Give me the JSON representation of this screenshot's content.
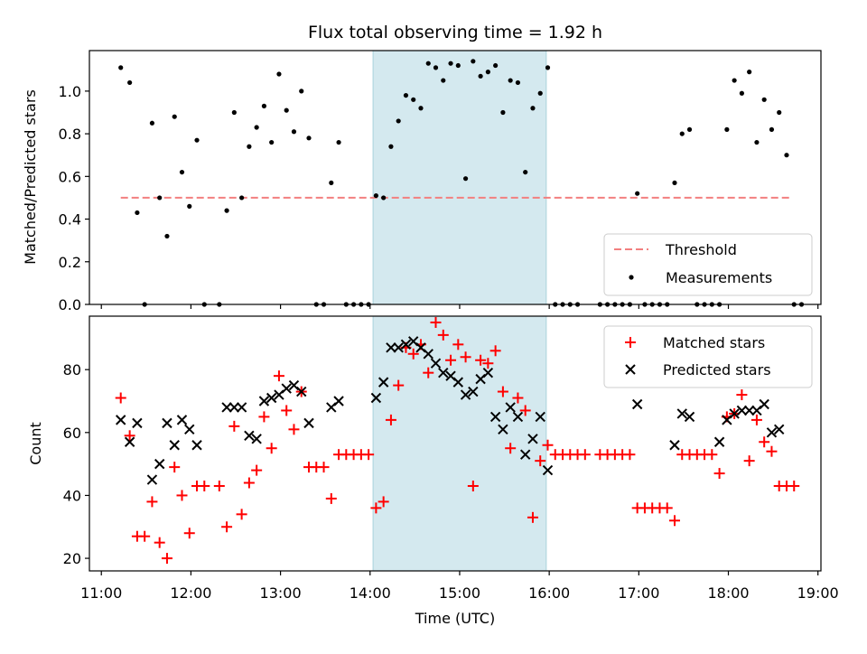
{
  "chart_data": [
    {
      "type": "scatter",
      "title": "Flux total observing time = 1.92 h",
      "ylabel": "Matched/Predicted stars",
      "xlabel": "",
      "ylim": [
        0,
        1.19
      ],
      "xlim": [
        "10:52",
        "19:02"
      ],
      "yticks": [
        0.0,
        0.2,
        0.4,
        0.6,
        0.8,
        1.0
      ],
      "ytick_labels": [
        "0.0",
        "0.2",
        "0.4",
        "0.6",
        "0.8",
        "1.0"
      ],
      "shaded_interval": [
        "14:02",
        "15:58"
      ],
      "shade_color": "#d4e9ef",
      "legend_position": "lower-right",
      "threshold": {
        "name": "Threshold",
        "value": 0.5,
        "x_range": [
          "11:13",
          "18:42"
        ],
        "color": "#f27f7f",
        "style": "dashed"
      },
      "series": [
        {
          "name": "Measurements",
          "color": "#000000",
          "marker": "dot",
          "points": [
            [
              "11:13",
              1.11
            ],
            [
              "11:19",
              1.04
            ],
            [
              "11:24",
              0.43
            ],
            [
              "11:29",
              0.0
            ],
            [
              "11:34",
              0.85
            ],
            [
              "11:39",
              0.5
            ],
            [
              "11:44",
              0.32
            ],
            [
              "11:49",
              0.88
            ],
            [
              "11:54",
              0.62
            ],
            [
              "11:59",
              0.46
            ],
            [
              "12:04",
              0.77
            ],
            [
              "12:09",
              0.0
            ],
            [
              "12:19",
              0.0
            ],
            [
              "12:24",
              0.44
            ],
            [
              "12:29",
              0.9
            ],
            [
              "12:34",
              0.5
            ],
            [
              "12:39",
              0.74
            ],
            [
              "12:44",
              0.83
            ],
            [
              "12:49",
              0.93
            ],
            [
              "12:54",
              0.76
            ],
            [
              "12:59",
              1.08
            ],
            [
              "13:04",
              0.91
            ],
            [
              "13:09",
              0.81
            ],
            [
              "13:14",
              1.0
            ],
            [
              "13:19",
              0.78
            ],
            [
              "13:24",
              0.0
            ],
            [
              "13:29",
              0.0
            ],
            [
              "13:34",
              0.57
            ],
            [
              "13:39",
              0.76
            ],
            [
              "13:44",
              0.0
            ],
            [
              "13:49",
              0.0
            ],
            [
              "13:54",
              0.0
            ],
            [
              "13:59",
              0.0
            ],
            [
              "14:04",
              0.51
            ],
            [
              "14:09",
              0.5
            ],
            [
              "14:14",
              0.74
            ],
            [
              "14:19",
              0.86
            ],
            [
              "14:24",
              0.98
            ],
            [
              "14:29",
              0.96
            ],
            [
              "14:34",
              0.92
            ],
            [
              "14:39",
              1.13
            ],
            [
              "14:44",
              1.11
            ],
            [
              "14:49",
              1.05
            ],
            [
              "14:54",
              1.13
            ],
            [
              "14:59",
              1.12
            ],
            [
              "15:04",
              0.59
            ],
            [
              "15:09",
              1.14
            ],
            [
              "15:14",
              1.07
            ],
            [
              "15:19",
              1.09
            ],
            [
              "15:24",
              1.12
            ],
            [
              "15:29",
              0.9
            ],
            [
              "15:34",
              1.05
            ],
            [
              "15:39",
              1.04
            ],
            [
              "15:44",
              0.62
            ],
            [
              "15:49",
              0.92
            ],
            [
              "15:54",
              0.99
            ],
            [
              "15:59",
              1.11
            ],
            [
              "16:04",
              0.0
            ],
            [
              "16:09",
              0.0
            ],
            [
              "16:14",
              0.0
            ],
            [
              "16:19",
              0.0
            ],
            [
              "16:34",
              0.0
            ],
            [
              "16:39",
              0.0
            ],
            [
              "16:44",
              0.0
            ],
            [
              "16:49",
              0.0
            ],
            [
              "16:54",
              0.0
            ],
            [
              "16:59",
              0.52
            ],
            [
              "17:04",
              0.0
            ],
            [
              "17:09",
              0.0
            ],
            [
              "17:14",
              0.0
            ],
            [
              "17:19",
              0.0
            ],
            [
              "17:24",
              0.57
            ],
            [
              "17:29",
              0.8
            ],
            [
              "17:34",
              0.82
            ],
            [
              "17:39",
              0.0
            ],
            [
              "17:44",
              0.0
            ],
            [
              "17:49",
              0.0
            ],
            [
              "17:54",
              0.0
            ],
            [
              "17:59",
              0.82
            ],
            [
              "18:04",
              1.05
            ],
            [
              "18:09",
              0.99
            ],
            [
              "18:14",
              1.09
            ],
            [
              "18:19",
              0.76
            ],
            [
              "18:24",
              0.96
            ],
            [
              "18:29",
              0.82
            ],
            [
              "18:34",
              0.9
            ],
            [
              "18:39",
              0.7
            ],
            [
              "18:44",
              0.0
            ],
            [
              "18:49",
              0.0
            ]
          ]
        }
      ]
    },
    {
      "type": "scatter",
      "title": "",
      "ylabel": "Count",
      "xlabel": "Time (UTC)",
      "ylim": [
        16,
        97
      ],
      "xlim": [
        "10:52",
        "19:02"
      ],
      "yticks": [
        20,
        40,
        60,
        80
      ],
      "ytick_labels": [
        "20",
        "40",
        "60",
        "80"
      ],
      "xticks": [
        "11:00",
        "12:00",
        "13:00",
        "14:00",
        "15:00",
        "16:00",
        "17:00",
        "18:00",
        "19:00"
      ],
      "xtick_labels": [
        "11:00",
        "12:00",
        "13:00",
        "14:00",
        "15:00",
        "16:00",
        "17:00",
        "18:00",
        "19:00"
      ],
      "shaded_interval": [
        "14:02",
        "15:58"
      ],
      "shade_color": "#d4e9ef",
      "legend_position": "upper-right",
      "series": [
        {
          "name": "Matched stars",
          "color": "#ff0000",
          "marker": "plus",
          "points": [
            [
              "11:13",
              71
            ],
            [
              "11:19",
              59
            ],
            [
              "11:24",
              27
            ],
            [
              "11:29",
              27
            ],
            [
              "11:34",
              38
            ],
            [
              "11:39",
              25
            ],
            [
              "11:44",
              20
            ],
            [
              "11:49",
              49
            ],
            [
              "11:54",
              40
            ],
            [
              "11:59",
              28
            ],
            [
              "12:04",
              43
            ],
            [
              "12:09",
              43
            ],
            [
              "12:19",
              43
            ],
            [
              "12:24",
              30
            ],
            [
              "12:29",
              62
            ],
            [
              "12:34",
              34
            ],
            [
              "12:39",
              44
            ],
            [
              "12:44",
              48
            ],
            [
              "12:49",
              65
            ],
            [
              "12:54",
              55
            ],
            [
              "12:59",
              78
            ],
            [
              "13:04",
              67
            ],
            [
              "13:09",
              61
            ],
            [
              "13:14",
              73
            ],
            [
              "13:19",
              49
            ],
            [
              "13:24",
              49
            ],
            [
              "13:29",
              49
            ],
            [
              "13:34",
              39
            ],
            [
              "13:39",
              53
            ],
            [
              "13:44",
              53
            ],
            [
              "13:49",
              53
            ],
            [
              "13:54",
              53
            ],
            [
              "13:59",
              53
            ],
            [
              "14:04",
              36
            ],
            [
              "14:09",
              38
            ],
            [
              "14:14",
              64
            ],
            [
              "14:19",
              75
            ],
            [
              "14:24",
              87
            ],
            [
              "14:29",
              85
            ],
            [
              "14:34",
              88
            ],
            [
              "14:39",
              79
            ],
            [
              "14:44",
              95
            ],
            [
              "14:49",
              91
            ],
            [
              "14:54",
              83
            ],
            [
              "14:59",
              88
            ],
            [
              "15:04",
              84
            ],
            [
              "15:09",
              43
            ],
            [
              "15:14",
              83
            ],
            [
              "15:19",
              82
            ],
            [
              "15:24",
              86
            ],
            [
              "15:29",
              73
            ],
            [
              "15:34",
              55
            ],
            [
              "15:39",
              71
            ],
            [
              "15:44",
              67
            ],
            [
              "15:49",
              33
            ],
            [
              "15:54",
              51
            ],
            [
              "15:59",
              56
            ],
            [
              "16:04",
              53
            ],
            [
              "16:09",
              53
            ],
            [
              "16:14",
              53
            ],
            [
              "16:19",
              53
            ],
            [
              "16:24",
              53
            ],
            [
              "16:34",
              53
            ],
            [
              "16:39",
              53
            ],
            [
              "16:44",
              53
            ],
            [
              "16:49",
              53
            ],
            [
              "16:54",
              53
            ],
            [
              "16:59",
              36
            ],
            [
              "17:04",
              36
            ],
            [
              "17:09",
              36
            ],
            [
              "17:14",
              36
            ],
            [
              "17:19",
              36
            ],
            [
              "17:24",
              32
            ],
            [
              "17:29",
              53
            ],
            [
              "17:34",
              53
            ],
            [
              "17:39",
              53
            ],
            [
              "17:44",
              53
            ],
            [
              "17:49",
              53
            ],
            [
              "17:54",
              47
            ],
            [
              "17:59",
              65
            ],
            [
              "18:04",
              66
            ],
            [
              "18:09",
              72
            ],
            [
              "18:14",
              51
            ],
            [
              "18:19",
              64
            ],
            [
              "18:24",
              57
            ],
            [
              "18:29",
              54
            ],
            [
              "18:34",
              43
            ],
            [
              "18:39",
              43
            ],
            [
              "18:44",
              43
            ]
          ]
        },
        {
          "name": "Predicted stars",
          "color": "#000000",
          "marker": "x",
          "points": [
            [
              "11:13",
              64
            ],
            [
              "11:19",
              57
            ],
            [
              "11:24",
              63
            ],
            [
              "11:34",
              45
            ],
            [
              "11:39",
              50
            ],
            [
              "11:44",
              63
            ],
            [
              "11:49",
              56
            ],
            [
              "11:54",
              64
            ],
            [
              "11:59",
              61
            ],
            [
              "12:04",
              56
            ],
            [
              "12:24",
              68
            ],
            [
              "12:29",
              68
            ],
            [
              "12:34",
              68
            ],
            [
              "12:39",
              59
            ],
            [
              "12:44",
              58
            ],
            [
              "12:49",
              70
            ],
            [
              "12:54",
              71
            ],
            [
              "12:59",
              72
            ],
            [
              "13:04",
              74
            ],
            [
              "13:09",
              75
            ],
            [
              "13:14",
              73
            ],
            [
              "13:19",
              63
            ],
            [
              "13:34",
              68
            ],
            [
              "13:39",
              70
            ],
            [
              "14:04",
              71
            ],
            [
              "14:09",
              76
            ],
            [
              "14:14",
              87
            ],
            [
              "14:19",
              87
            ],
            [
              "14:24",
              88
            ],
            [
              "14:29",
              89
            ],
            [
              "14:34",
              87
            ],
            [
              "14:39",
              85
            ],
            [
              "14:44",
              82
            ],
            [
              "14:49",
              79
            ],
            [
              "14:54",
              78
            ],
            [
              "14:59",
              76
            ],
            [
              "15:04",
              72
            ],
            [
              "15:09",
              73
            ],
            [
              "15:14",
              77
            ],
            [
              "15:19",
              79
            ],
            [
              "15:24",
              65
            ],
            [
              "15:29",
              61
            ],
            [
              "15:34",
              68
            ],
            [
              "15:39",
              65
            ],
            [
              "15:44",
              53
            ],
            [
              "15:49",
              58
            ],
            [
              "15:54",
              65
            ],
            [
              "15:59",
              48
            ],
            [
              "16:59",
              69
            ],
            [
              "17:24",
              56
            ],
            [
              "17:29",
              66
            ],
            [
              "17:34",
              65
            ],
            [
              "17:54",
              57
            ],
            [
              "17:59",
              64
            ],
            [
              "18:04",
              66
            ],
            [
              "18:09",
              67
            ],
            [
              "18:14",
              67
            ],
            [
              "18:19",
              67
            ],
            [
              "18:24",
              69
            ],
            [
              "18:29",
              60
            ],
            [
              "18:34",
              61
            ]
          ]
        }
      ]
    }
  ]
}
